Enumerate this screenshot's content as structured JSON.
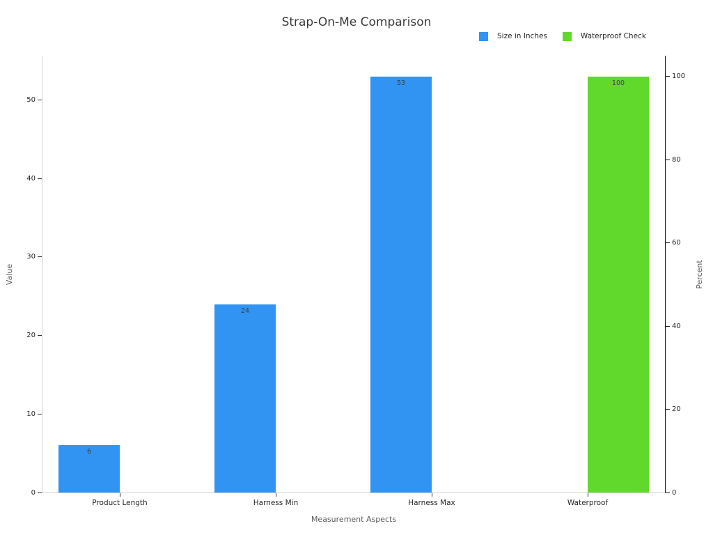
{
  "title": "Strap-On-Me Comparison",
  "legend": {
    "items": [
      {
        "label": "Size in Inches",
        "color": "#3194F2"
      },
      {
        "label": "Waterproof Check",
        "color": "#61D92C"
      }
    ]
  },
  "chart_data": {
    "type": "bar",
    "title": "Strap-On-Me Comparison",
    "xlabel": "Measurement Aspects",
    "ylabel_left": "Value",
    "ylabel_right": "Percent",
    "categories": [
      "Product Length",
      "Harness Min",
      "Harness Max",
      "Waterproof"
    ],
    "series": [
      {
        "name": "Size in Inches",
        "axis": "left",
        "color": "#3194F2",
        "values": [
          6,
          24,
          53,
          0
        ]
      },
      {
        "name": "Waterproof Check",
        "axis": "right",
        "color": "#61D92C",
        "values": [
          0,
          0,
          0,
          100
        ]
      }
    ],
    "bar_value_labels_shown": [
      "6",
      "24",
      "53",
      "100"
    ],
    "ylim_left": [
      0,
      55.65
    ],
    "ylim_right": [
      0,
      105
    ],
    "yticks_left": [
      0,
      10,
      20,
      30,
      40,
      50
    ],
    "yticks_right": [
      0,
      20,
      40,
      60,
      80,
      100
    ],
    "grid": false,
    "legend_position": "top-right"
  },
  "style": {
    "background": "#ffffff",
    "title_color": "#3a3a3a",
    "tick_label_color": "#262626",
    "tick_mark_color": "#333333",
    "axis_title_color": "#595959",
    "bar_label_color": "#3d3d3d",
    "spine_light": "#cfcfcf",
    "spine_dark": "#141414",
    "legend_text_color": "#262626"
  }
}
